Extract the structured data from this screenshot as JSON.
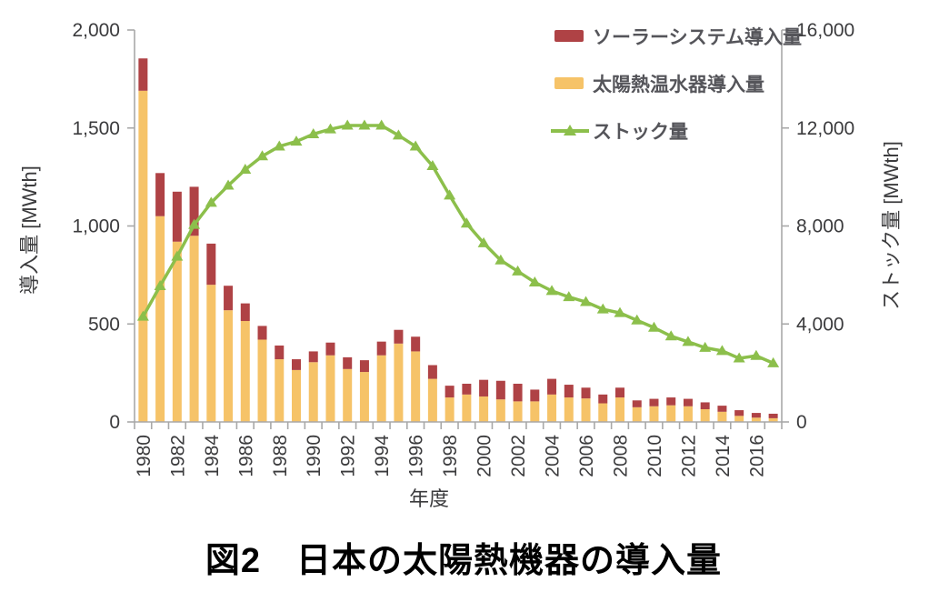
{
  "colors": {
    "solar_system_bar": "#AF4245",
    "water_heater_bar": "#F6C368",
    "stock_line": "#8CBF4B",
    "axis_line": "#A8A8A8",
    "tick_text": "#3B3B3D",
    "legend_text": "#55555A",
    "caption_text": "#000000"
  },
  "chart_data": {
    "type": "bar",
    "subtype": "stacked-bars-with-line",
    "title": "図2　日本の太陽熱機器の導入量",
    "xlabel": "年度",
    "ylabel_left": "導入量 [MWth]",
    "ylabel_right": "ストック量 [MWth]",
    "y_left_range": [
      0,
      2000
    ],
    "y_right_range": [
      0,
      16000
    ],
    "y_left_ticks": [
      {
        "value": 0,
        "label": "0"
      },
      {
        "value": 500,
        "label": "500"
      },
      {
        "value": 1000,
        "label": "1,000"
      },
      {
        "value": 1500,
        "label": "1,500"
      },
      {
        "value": 2000,
        "label": "2,000"
      }
    ],
    "y_right_ticks": [
      {
        "value": 0,
        "label": "0"
      },
      {
        "value": 4000,
        "label": "4,000"
      },
      {
        "value": 8000,
        "label": "8,000"
      },
      {
        "value": 12000,
        "label": "12,000"
      },
      {
        "value": 16000,
        "label": "16,000"
      }
    ],
    "x_label_every": 2,
    "grid": false,
    "legend_position": "top-right-inside",
    "years": [
      1980,
      1981,
      1982,
      1983,
      1984,
      1985,
      1986,
      1987,
      1988,
      1989,
      1990,
      1991,
      1992,
      1993,
      1994,
      1995,
      1996,
      1997,
      1998,
      1999,
      2000,
      2001,
      2002,
      2003,
      2004,
      2005,
      2006,
      2007,
      2008,
      2009,
      2010,
      2011,
      2012,
      2013,
      2014,
      2015,
      2016,
      2017
    ],
    "series": [
      {
        "name": "ソーラーシステム導入量",
        "kind": "bar-top",
        "axis": "left",
        "color": "#AF4245",
        "values": [
          165,
          220,
          255,
          250,
          210,
          125,
          90,
          70,
          70,
          55,
          55,
          65,
          60,
          60,
          70,
          70,
          75,
          70,
          60,
          55,
          85,
          95,
          90,
          60,
          80,
          65,
          55,
          45,
          50,
          35,
          38,
          40,
          38,
          35,
          31,
          29,
          24,
          23
        ]
      },
      {
        "name": "太陽熱温水器導入量",
        "kind": "bar-bottom",
        "axis": "left",
        "color": "#F6C368",
        "values": [
          1690,
          1050,
          920,
          950,
          700,
          570,
          515,
          420,
          320,
          265,
          305,
          340,
          270,
          255,
          340,
          400,
          360,
          220,
          125,
          140,
          130,
          115,
          105,
          105,
          140,
          125,
          120,
          95,
          125,
          75,
          80,
          85,
          80,
          65,
          52,
          31,
          22,
          19
        ]
      },
      {
        "name": "ストック量",
        "kind": "line",
        "axis": "right",
        "color": "#8CBF4B",
        "values": [
          4300,
          5550,
          6750,
          8050,
          8950,
          9650,
          10300,
          10850,
          11250,
          11450,
          11750,
          11950,
          12100,
          12100,
          12100,
          11700,
          11250,
          10450,
          9250,
          8100,
          7300,
          6600,
          6150,
          5700,
          5350,
          5100,
          4900,
          4600,
          4450,
          4150,
          3850,
          3500,
          3270,
          3030,
          2900,
          2600,
          2700,
          2400
        ]
      }
    ]
  }
}
